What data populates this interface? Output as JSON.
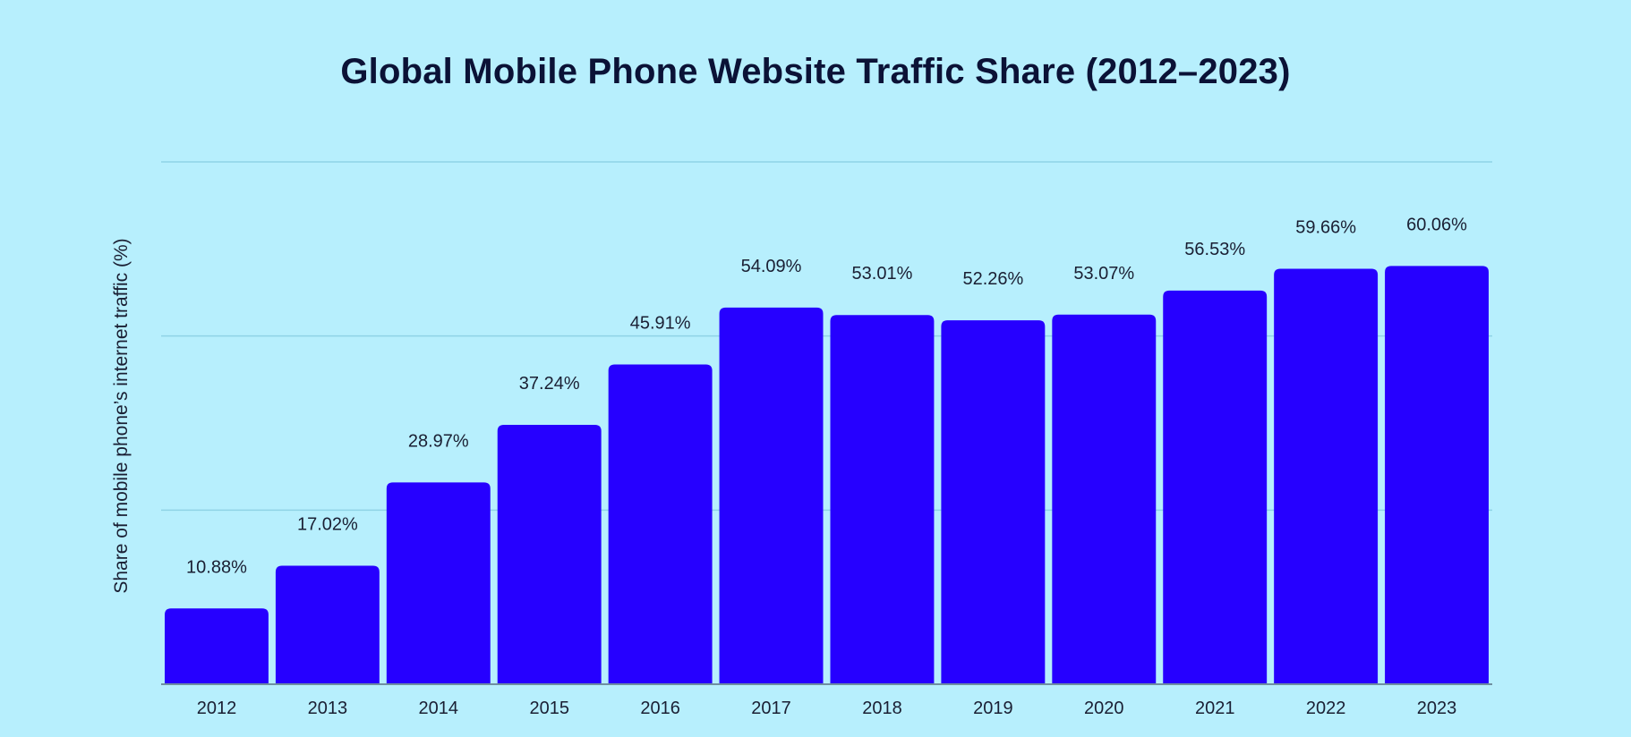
{
  "chart_data": {
    "type": "bar",
    "title": "Global Mobile Phone Website Traffic Share (2012–2023)",
    "xlabel": "",
    "ylabel": "Share of mobile phone’s internet traffic (%)",
    "categories": [
      "2012",
      "2013",
      "2014",
      "2015",
      "2016",
      "2017",
      "2018",
      "2019",
      "2020",
      "2021",
      "2022",
      "2023"
    ],
    "values": [
      10.88,
      17.02,
      28.97,
      37.24,
      45.91,
      54.09,
      53.01,
      52.26,
      53.07,
      56.53,
      59.66,
      60.06
    ],
    "data_labels": [
      "10.88%",
      "17.02%",
      "28.97%",
      "37.24%",
      "45.91%",
      "54.09%",
      "53.01%",
      "52.26%",
      "53.07%",
      "56.53%",
      "59.66%",
      "60.06%"
    ],
    "ylim": [
      0,
      75
    ],
    "gridlines": [
      25,
      50,
      75
    ],
    "grid": true,
    "legend": "none",
    "colors": {
      "bar": "#2600ff",
      "background": "#b7effd",
      "grid": "#8fd3e6",
      "text": "#0b1236"
    }
  }
}
